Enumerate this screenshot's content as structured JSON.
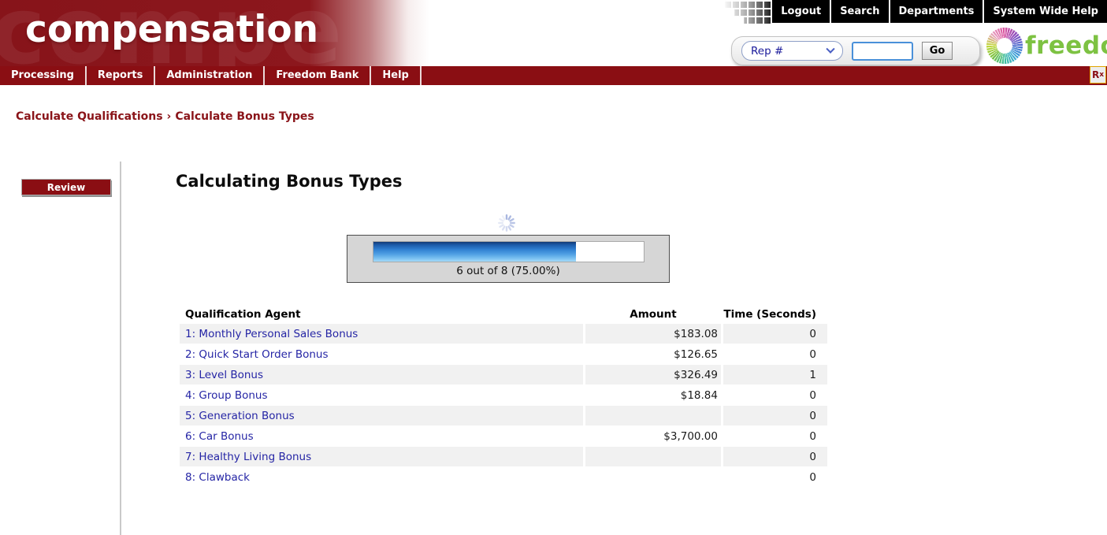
{
  "brand": {
    "logo_text": "compensation",
    "watermark_text": "compe"
  },
  "top_menu": {
    "items": [
      "Logout",
      "Search",
      "Departments",
      "System Wide Help"
    ]
  },
  "quick_search": {
    "selected_option": "Rep #",
    "input_value": "",
    "go_label": "Go"
  },
  "freedom_logo": {
    "text": "freedom"
  },
  "nav": {
    "items": [
      "Processing",
      "Reports",
      "Administration",
      "Freedom Bank",
      "Help"
    ],
    "rx_label_main": "R",
    "rx_label_sub": "x"
  },
  "breadcrumb": {
    "items": [
      "Calculate Qualifications",
      "Calculate Bonus Types"
    ],
    "separator": "›"
  },
  "sidebar": {
    "review_label": "Review"
  },
  "main": {
    "title": "Calculating Bonus Types",
    "progress": {
      "current": 6,
      "total": 8,
      "percent": 75,
      "label": "6 out of 8 (75.00%)"
    },
    "table": {
      "headers": {
        "agent": "Qualification Agent",
        "amount": "Amount",
        "time": "Time (Seconds)"
      },
      "rows": [
        {
          "agent": "1: Monthly Personal Sales Bonus",
          "amount": "$183.08",
          "time": "0"
        },
        {
          "agent": "2: Quick Start Order Bonus",
          "amount": "$126.65",
          "time": "0"
        },
        {
          "agent": "3: Level Bonus",
          "amount": "$326.49",
          "time": "1"
        },
        {
          "agent": "4: Group Bonus",
          "amount": "$18.84",
          "time": "0"
        },
        {
          "agent": "5: Generation Bonus",
          "amount": "",
          "time": "0"
        },
        {
          "agent": "6: Car Bonus",
          "amount": "$3,700.00",
          "time": "0"
        },
        {
          "agent": "7: Healthy Living Bonus",
          "amount": "",
          "time": "0"
        },
        {
          "agent": "8: Clawback",
          "amount": "",
          "time": "0"
        }
      ]
    }
  },
  "colors": {
    "brand_red": "#8a0e13",
    "link_blue": "#2525a5",
    "freedom_green": "#7dc242",
    "progress_blue": "#2f7fd1",
    "row_shade": "#f1f1f1"
  }
}
